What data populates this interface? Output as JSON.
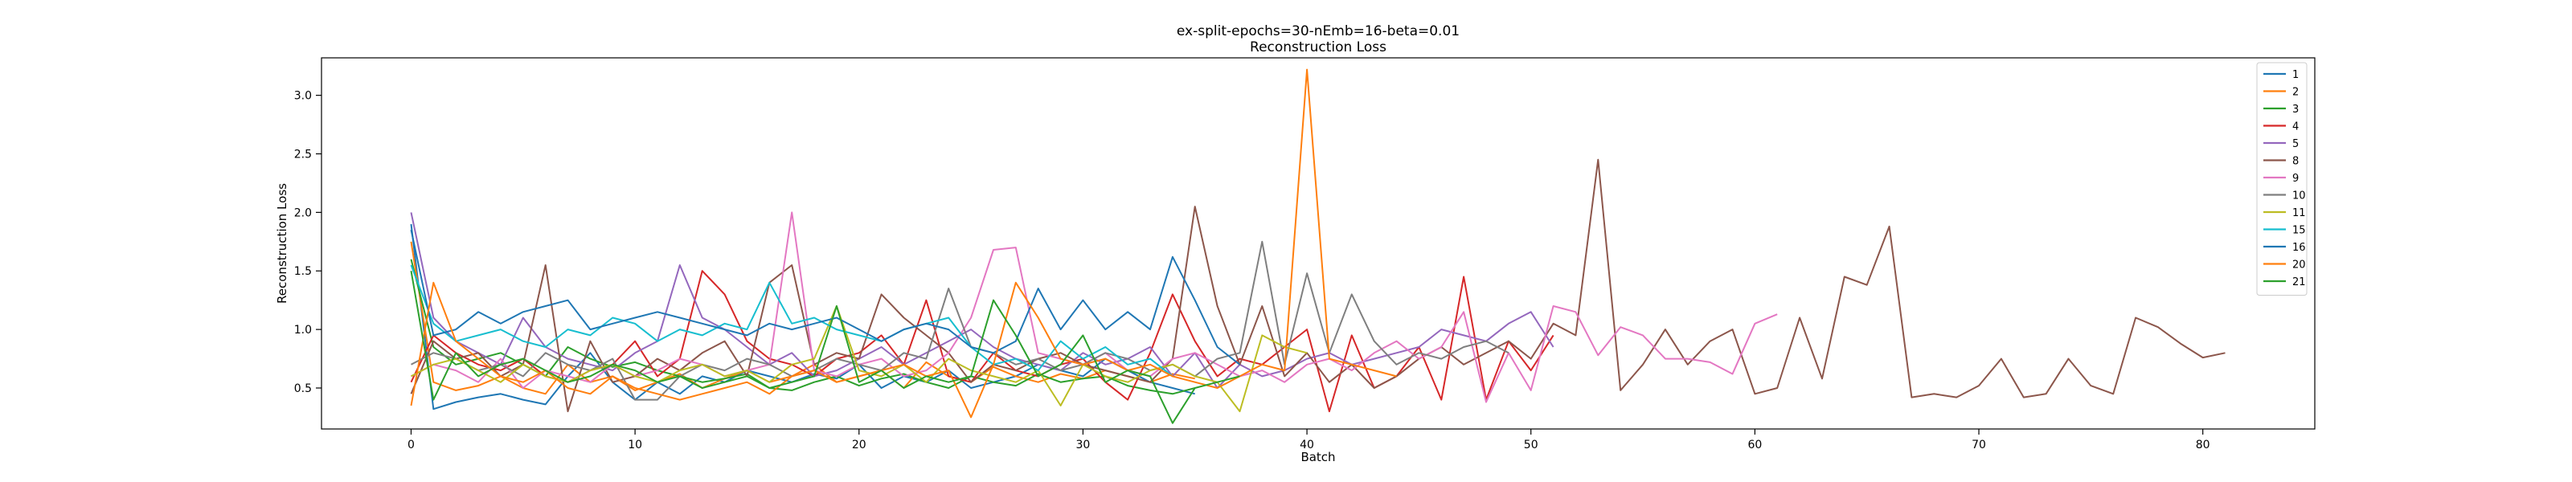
{
  "chart_data": {
    "type": "line",
    "title": "ex-split-epochs=30-nEmb=16-beta=0.01",
    "subtitle": "Reconstruction Loss",
    "xlabel": "Batch",
    "ylabel": "Reconstruction Loss",
    "xlim": [
      -4,
      85
    ],
    "ylim": [
      0.15,
      3.32
    ],
    "xticks": [
      0,
      10,
      20,
      30,
      40,
      50,
      60,
      70,
      80
    ],
    "yticks": [
      0.5,
      1.0,
      1.5,
      2.0,
      2.5,
      3.0
    ],
    "ytick_labels": [
      "0.5",
      "1.0",
      "1.5",
      "2.0",
      "2.5",
      "3.0"
    ],
    "grid": false,
    "legend": "top-right",
    "series": [
      {
        "name": "1",
        "color": "#1f77b4",
        "values": [
          1.9,
          0.32,
          0.38,
          0.42,
          0.45,
          0.4,
          0.36,
          0.6,
          0.8,
          0.55,
          0.4,
          0.55,
          0.45,
          0.6,
          0.55,
          0.65,
          0.6,
          0.55,
          0.62,
          0.58,
          0.7,
          0.5,
          0.6,
          0.55,
          0.65,
          0.5,
          0.55,
          0.6,
          0.7,
          0.65,
          0.6,
          0.75,
          0.65,
          0.55,
          0.5,
          0.45
        ]
      },
      {
        "name": "2",
        "color": "#ff7f0e",
        "values": [
          1.75,
          0.55,
          0.48,
          0.52,
          0.6,
          0.5,
          0.45,
          0.7,
          0.55,
          0.6,
          0.48,
          0.55,
          0.62,
          0.5,
          0.58,
          0.65,
          0.55,
          0.6,
          0.7,
          0.55,
          0.6,
          0.65,
          0.5,
          0.72,
          0.6,
          0.55,
          0.68,
          0.6,
          0.55,
          0.62,
          0.58,
          0.65,
          0.6,
          0.55,
          0.62,
          0.58
        ]
      },
      {
        "name": "3",
        "color": "#2ca02c",
        "values": [
          1.6,
          0.85,
          0.7,
          0.75,
          0.8,
          0.7,
          0.6,
          0.85,
          0.75,
          0.68,
          0.72,
          0.65,
          0.6,
          0.55,
          0.58,
          0.62,
          0.5,
          0.48,
          0.55,
          0.6,
          0.52,
          0.58,
          0.62,
          0.55,
          0.5,
          0.6,
          0.55,
          0.52,
          0.62,
          0.55,
          0.58,
          0.6,
          0.52,
          0.48,
          0.45,
          0.5
        ]
      },
      {
        "name": "4",
        "color": "#d62728",
        "values": [
          0.55,
          0.95,
          0.8,
          0.7,
          0.65,
          0.75,
          0.6,
          0.55,
          0.65,
          0.7,
          0.9,
          0.6,
          0.75,
          1.5,
          1.3,
          0.9,
          0.75,
          0.7,
          0.6,
          0.75,
          0.8,
          0.95,
          0.7,
          1.25,
          0.6,
          0.55,
          0.8,
          0.65,
          0.6,
          0.7,
          0.75,
          0.55,
          0.4,
          0.8,
          1.3,
          0.9,
          0.6,
          0.75,
          0.7,
          0.85,
          1.0,
          0.3,
          0.95,
          0.5,
          0.6,
          0.85,
          0.4,
          1.45,
          0.4,
          0.9,
          0.65,
          0.95
        ]
      },
      {
        "name": "5",
        "color": "#9467bd",
        "values": [
          2.0,
          1.1,
          0.9,
          0.8,
          0.7,
          1.1,
          0.85,
          0.75,
          0.7,
          0.65,
          0.8,
          0.9,
          1.55,
          1.1,
          1.0,
          0.85,
          0.7,
          0.8,
          0.6,
          0.65,
          0.75,
          0.85,
          0.7,
          0.8,
          0.9,
          1.0,
          0.85,
          0.75,
          0.7,
          0.65,
          0.8,
          0.7,
          0.75,
          0.85,
          0.6,
          0.8,
          0.5,
          0.7,
          0.6,
          0.65,
          0.75,
          0.8,
          0.7,
          0.75,
          0.8,
          0.85,
          1.0,
          0.95,
          0.9,
          1.05,
          1.15,
          0.85
        ]
      },
      {
        "name": "8",
        "color": "#8c564b",
        "values": [
          0.45,
          0.9,
          0.75,
          0.8,
          0.6,
          0.7,
          1.55,
          0.3,
          0.9,
          0.55,
          0.6,
          0.75,
          0.65,
          0.8,
          0.9,
          0.6,
          1.4,
          1.55,
          0.7,
          0.8,
          0.75,
          1.3,
          1.1,
          0.95,
          0.8,
          0.55,
          0.7,
          0.65,
          0.75,
          0.8,
          0.7,
          0.65,
          0.6,
          0.55,
          0.75,
          2.05,
          1.2,
          0.7,
          1.2,
          0.6,
          0.8,
          0.55,
          0.7,
          0.5,
          0.6,
          0.75,
          0.85,
          0.7,
          0.8,
          0.9,
          0.75,
          1.05,
          0.95,
          2.45,
          0.48,
          0.7,
          1.0,
          0.7,
          0.9,
          1.0,
          0.45,
          0.5,
          1.1,
          0.58,
          1.45,
          1.38,
          1.88,
          0.42,
          0.45,
          0.42,
          0.52,
          0.75,
          0.42,
          0.45,
          0.75,
          0.52,
          0.45,
          1.1,
          1.02,
          0.88,
          0.76,
          0.8
        ]
      },
      {
        "name": "9",
        "color": "#e377c2",
        "values": [
          0.6,
          0.7,
          0.65,
          0.55,
          0.75,
          0.5,
          0.65,
          0.6,
          0.55,
          0.7,
          0.6,
          0.65,
          0.75,
          0.7,
          0.6,
          0.65,
          0.7,
          2.0,
          0.65,
          0.6,
          0.7,
          0.75,
          0.6,
          0.65,
          0.8,
          1.1,
          1.68,
          1.7,
          0.8,
          0.75,
          0.7,
          0.8,
          0.65,
          0.6,
          0.75,
          0.8,
          0.7,
          0.6,
          0.65,
          0.55,
          0.7,
          0.75,
          0.65,
          0.8,
          0.9,
          0.75,
          0.85,
          1.15,
          0.38,
          0.8,
          0.48,
          1.2,
          1.15,
          0.78,
          1.02,
          0.95,
          0.75,
          0.75,
          0.72,
          0.62,
          1.05,
          1.13
        ]
      },
      {
        "name": "10",
        "color": "#7f7f7f",
        "values": [
          0.7,
          0.8,
          0.75,
          0.65,
          0.7,
          0.6,
          0.8,
          0.7,
          0.65,
          0.75,
          0.4,
          0.4,
          0.6,
          0.7,
          0.65,
          0.75,
          0.7,
          0.6,
          0.65,
          0.75,
          0.7,
          0.65,
          0.8,
          0.75,
          1.35,
          0.85,
          0.8,
          0.7,
          0.75,
          0.65,
          0.7,
          0.8,
          0.75,
          0.65,
          0.7,
          0.6,
          0.75,
          0.8,
          1.75,
          0.7,
          1.48,
          0.8,
          1.3,
          0.9,
          0.7,
          0.8,
          0.75,
          0.85,
          0.9,
          0.8
        ]
      },
      {
        "name": "11",
        "color": "#bcbd22",
        "values": [
          0.6,
          0.7,
          0.75,
          0.65,
          0.55,
          0.7,
          0.6,
          0.55,
          0.65,
          0.7,
          0.6,
          0.55,
          0.65,
          0.7,
          0.6,
          0.65,
          0.55,
          0.7,
          0.75,
          1.2,
          0.65,
          0.6,
          0.7,
          0.55,
          0.75,
          0.65,
          0.6,
          0.55,
          0.65,
          0.35,
          0.7,
          0.6,
          0.55,
          0.65,
          0.7,
          0.6,
          0.55,
          0.3,
          0.95,
          0.85,
          0.8
        ]
      },
      {
        "name": "15",
        "color": "#17becf",
        "values": [
          1.55,
          1.05,
          0.9,
          0.95,
          1.0,
          0.9,
          0.85,
          1.0,
          0.95,
          1.1,
          1.05,
          0.9,
          1.0,
          0.95,
          1.05,
          1.0,
          1.4,
          1.05,
          1.1,
          1.0,
          0.95,
          0.9,
          1.0,
          1.05,
          1.1,
          0.85,
          0.7,
          0.75,
          0.65,
          0.9,
          0.75,
          0.85,
          0.7,
          0.75,
          0.6
        ]
      },
      {
        "name": "16",
        "color": "#1f77b4",
        "values": [
          1.85,
          0.95,
          1.0,
          1.15,
          1.05,
          1.15,
          1.2,
          1.25,
          1.0,
          1.05,
          1.1,
          1.15,
          1.1,
          1.05,
          1.0,
          0.95,
          1.05,
          1.0,
          1.05,
          1.1,
          1.0,
          0.9,
          1.0,
          1.05,
          1.0,
          0.85,
          0.8,
          0.9,
          1.35,
          1.0,
          1.25,
          1.0,
          1.15,
          1.0,
          1.62,
          1.25,
          0.85,
          0.7
        ]
      },
      {
        "name": "20",
        "color": "#ff7f0e",
        "values": [
          0.35,
          1.4,
          0.9,
          0.75,
          0.6,
          0.55,
          0.65,
          0.5,
          0.45,
          0.6,
          0.5,
          0.45,
          0.4,
          0.45,
          0.5,
          0.55,
          0.45,
          0.6,
          0.65,
          0.55,
          0.6,
          0.65,
          0.7,
          0.6,
          0.65,
          0.25,
          0.7,
          1.4,
          1.1,
          0.75,
          0.7,
          0.75,
          0.65,
          0.7,
          0.6,
          0.55,
          0.5,
          0.6,
          0.7,
          0.65,
          3.22,
          0.75,
          0.7,
          0.65,
          0.6
        ]
      },
      {
        "name": "21",
        "color": "#2ca02c",
        "values": [
          1.5,
          0.4,
          0.8,
          0.6,
          0.7,
          0.75,
          0.65,
          0.55,
          0.6,
          0.7,
          0.65,
          0.55,
          0.6,
          0.5,
          0.55,
          0.6,
          0.5,
          0.55,
          0.6,
          1.2,
          0.55,
          0.65,
          0.5,
          0.6,
          0.55,
          0.6,
          1.25,
          0.95,
          0.6,
          0.7,
          0.95,
          0.55,
          0.65,
          0.6,
          0.2,
          0.5,
          0.55,
          0.6
        ]
      }
    ]
  }
}
